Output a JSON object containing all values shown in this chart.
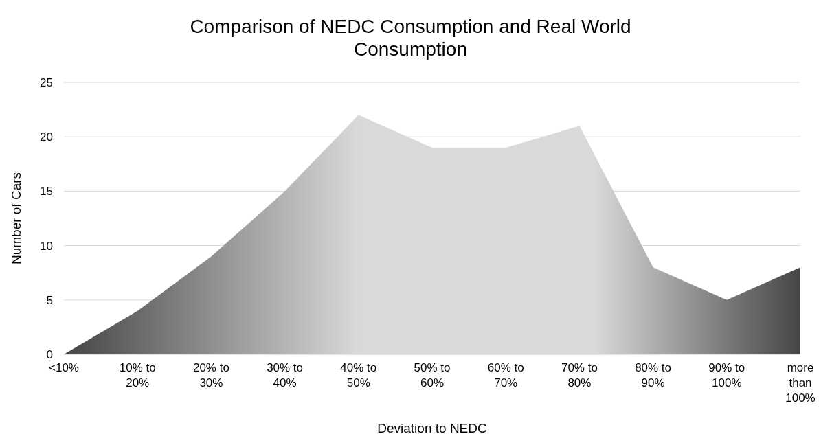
{
  "chart_data": {
    "type": "area",
    "title": "Comparison of NEDC Consumption and Real World Consumption",
    "xlabel": "Deviation to NEDC",
    "ylabel": "Number of Cars",
    "categories": [
      "<10%",
      "10% to 20%",
      "20% to 30%",
      "30% to 40%",
      "40% to 50%",
      "50% to 60%",
      "60% to 70%",
      "70% to 80%",
      "80% to 90%",
      "90% to 100%",
      "more than 100%"
    ],
    "values": [
      0,
      4,
      9,
      15,
      22,
      19,
      19,
      21,
      8,
      5,
      8
    ],
    "color": "#d9d9d9",
    "ylim": [
      0,
      25
    ],
    "yticks": [
      0,
      5,
      10,
      15,
      20,
      25
    ],
    "grid": "y"
  }
}
